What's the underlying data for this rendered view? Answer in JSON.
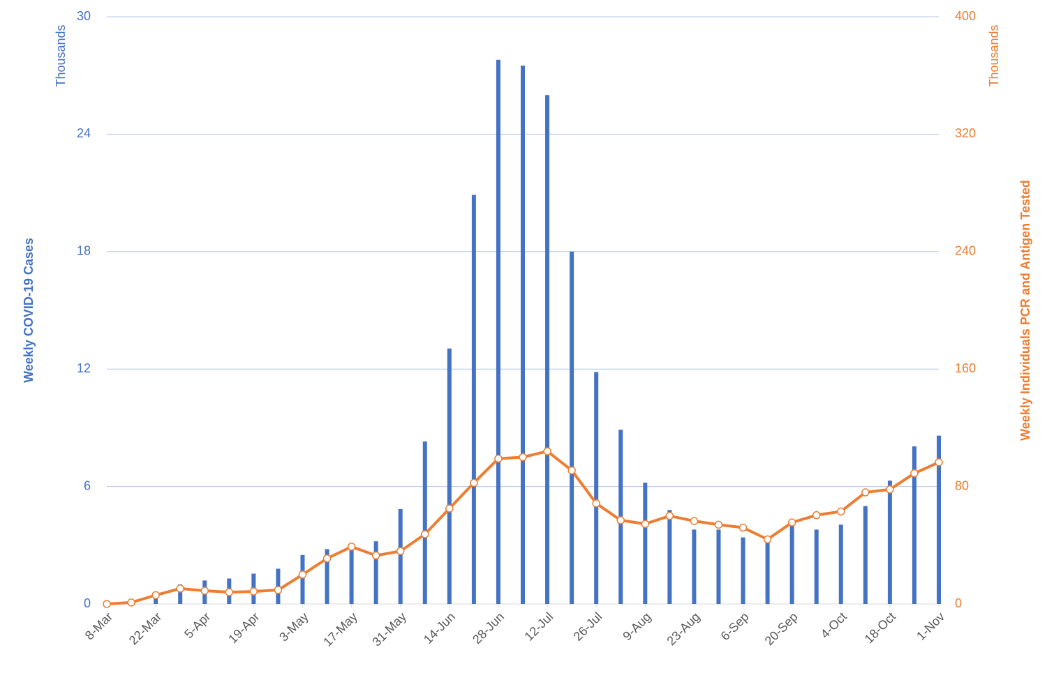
{
  "chart_data": {
    "type": "combo",
    "categories": [
      "8-Mar",
      null,
      "22-Mar",
      null,
      "5-Apr",
      null,
      "19-Apr",
      null,
      "3-May",
      null,
      "17-May",
      null,
      "31-May",
      null,
      "14-Jun",
      null,
      "28-Jun",
      null,
      "12-Jul",
      null,
      "26-Jul",
      null,
      "9-Aug",
      null,
      "23-Aug",
      null,
      "6-Sep",
      null,
      "20-Sep",
      null,
      "4-Oct",
      null,
      "18-Oct",
      null,
      "1-Nov"
    ],
    "series": [
      {
        "type": "bar",
        "color": "#4472c4",
        "values": [
          0,
          0,
          0.55,
          1.0,
          1.2,
          1.3,
          1.55,
          1.8,
          2.5,
          2.8,
          3.1,
          3.2,
          4.85,
          8.3,
          13.05,
          20.9,
          27.8,
          27.5,
          26.0,
          18.0,
          11.85,
          8.9,
          6.2,
          4.8,
          3.8,
          3.8,
          3.4,
          3.2,
          4.0,
          3.8,
          4.05,
          5.0,
          6.3,
          8.05,
          8.6
        ]
      },
      {
        "type": "line",
        "axis": "y2",
        "color": "#ed7d31",
        "values": [
          0,
          1,
          6,
          10.5,
          9,
          8,
          8.5,
          9.5,
          20,
          31,
          39,
          33,
          36,
          47.5,
          65,
          82.5,
          99,
          100,
          104,
          91,
          68.5,
          57,
          54.5,
          60,
          56.5,
          54,
          52,
          44,
          55.5,
          60.5,
          63,
          76,
          78,
          89,
          96.5
        ]
      }
    ],
    "y_label": "Weekly COVID-19 Cases",
    "y_unit_label": "Thousands",
    "y2_label": "Weekly Individuals PCR and Antigen Tested",
    "y2_unit_label": "Thousands",
    "ylim": [
      0,
      30
    ],
    "yticks": [
      0,
      6,
      12,
      18,
      24,
      30
    ],
    "y2lim": [
      0,
      400
    ],
    "y2ticks": [
      0,
      80,
      160,
      240,
      320,
      400
    ],
    "grid": true
  }
}
